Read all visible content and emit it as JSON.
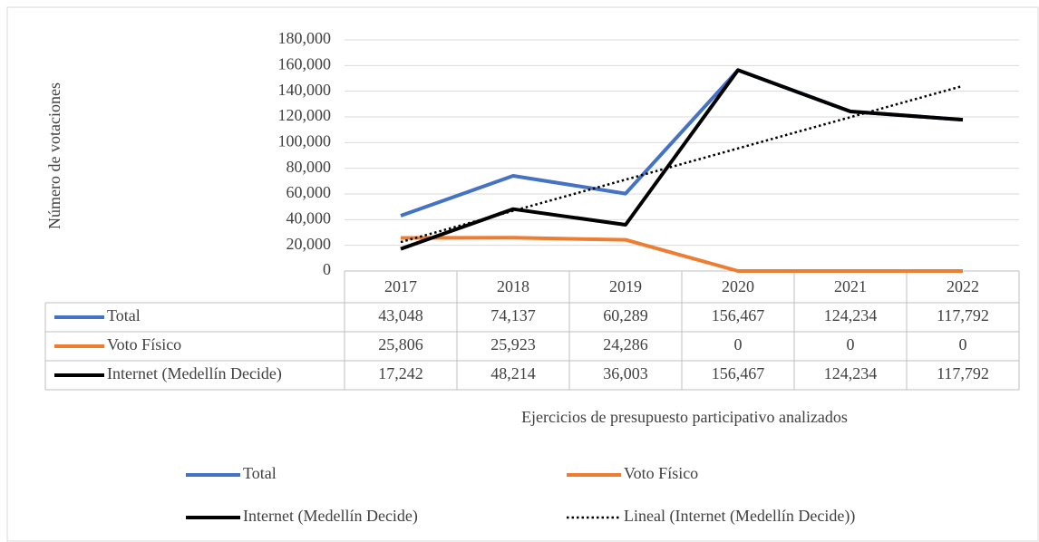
{
  "chart_data": {
    "type": "line",
    "y_label": "Número de votaciones",
    "x_label": "Ejercicios de presupuesto participativo analizados",
    "categories": [
      "2017",
      "2018",
      "2019",
      "2020",
      "2021",
      "2022"
    ],
    "series": [
      {
        "name": "Total",
        "color": "#4472c4",
        "values": [
          43048,
          74137,
          60289,
          156467,
          124234,
          117792
        ],
        "value_labels": [
          "43,048",
          "74,137",
          "60,289",
          "156,467",
          "124,234",
          "117,792"
        ]
      },
      {
        "name": "Voto Físico",
        "color": "#ed7d31",
        "values": [
          25806,
          25923,
          24286,
          0,
          0,
          0
        ],
        "value_labels": [
          "25,806",
          "25,923",
          "24,286",
          "0",
          "0",
          "0"
        ]
      },
      {
        "name": "Internet (Medellín Decide)",
        "color": "#000000",
        "values": [
          17242,
          48214,
          36003,
          156467,
          124234,
          117792
        ],
        "value_labels": [
          "17,242",
          "48,214",
          "36,003",
          "156,467",
          "124,234",
          "117,792"
        ]
      }
    ],
    "trendline": {
      "name": "Lineal (Internet (Medellín Decide))",
      "color": "#000000",
      "style": "dotted",
      "values": [
        22520,
        46842,
        71164,
        95486,
        119809,
        144131
      ]
    },
    "ylim": [
      0,
      180000
    ],
    "yticks": [
      0,
      {
        "value": 20000,
        "label": "20,000"
      },
      {
        "value": 40000,
        "label": "40,000"
      },
      {
        "value": 60000,
        "label": "60,000"
      },
      {
        "value": 80000,
        "label": "80,000"
      },
      {
        "value": 100000,
        "label": "100,000"
      },
      {
        "value": 120000,
        "label": "120,000"
      },
      {
        "value": 140000,
        "label": "140,000"
      },
      {
        "value": 160000,
        "label": "160,000"
      },
      {
        "value": 180000,
        "label": "180,000"
      }
    ],
    "grid": true,
    "legend": "bottom"
  }
}
